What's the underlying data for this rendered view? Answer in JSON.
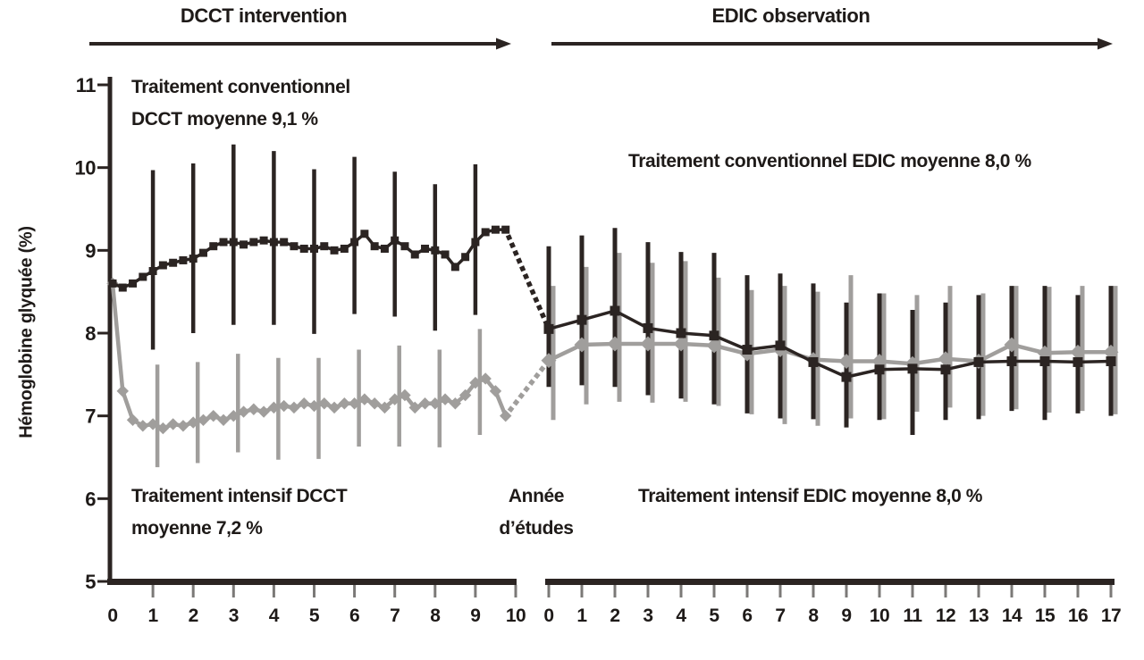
{
  "figure": {
    "y_axis_title": "Hémoglobine glyquée (%)"
  },
  "annotations": {
    "conventional_dcct": {
      "line1": "Traitement conventionnel",
      "line2": "DCCT moyenne 9,1 %"
    },
    "conventional_edic": {
      "line1": "Traitement conventionnel EDIC moyenne 8,0 %"
    },
    "intensive_dcct": {
      "line1": "Traitement intensif DCCT",
      "line2": "moyenne 7,2 %"
    },
    "between_axes": {
      "line1": "Année",
      "line2": "d’études"
    },
    "intensive_edic": {
      "line1": "Traitement intensif EDIC moyenne 8,0 %"
    }
  },
  "chart_data": {
    "type": "line",
    "title": "",
    "ylabel": "Hémoglobine glyquée (%)",
    "ylim": [
      5,
      11
    ],
    "y_ticks": [
      5,
      6,
      7,
      8,
      9,
      10,
      11
    ],
    "grid": false,
    "legend": "in-plot text annotations",
    "colors": {
      "conventional": "#2b2422",
      "intensive": "#a09e9c"
    },
    "panels": [
      {
        "name": "DCCT intervention",
        "x_label": "Année d’études",
        "x_ticks": [
          0,
          1,
          2,
          3,
          4,
          5,
          6,
          7,
          8,
          9,
          10
        ],
        "series": [
          {
            "name": "Traitement conventionnel DCCT",
            "mean_label": "9,1 %",
            "color": "#2b2422",
            "marker": "square",
            "x": [
              0,
              0.25,
              0.5,
              0.75,
              1,
              1.25,
              1.5,
              1.75,
              2,
              2.25,
              2.5,
              2.75,
              3,
              3.25,
              3.5,
              3.75,
              4,
              4.25,
              4.5,
              4.75,
              5,
              5.25,
              5.5,
              5.75,
              6,
              6.25,
              6.5,
              6.75,
              7,
              7.25,
              7.5,
              7.75,
              8,
              8.25,
              8.5,
              8.75,
              9,
              9.25,
              9.5,
              9.75
            ],
            "values": [
              8.6,
              8.55,
              8.6,
              8.68,
              8.75,
              8.82,
              8.85,
              8.88,
              8.9,
              8.97,
              9.05,
              9.1,
              9.1,
              9.07,
              9.1,
              9.12,
              9.1,
              9.1,
              9.05,
              9.02,
              9.02,
              9.05,
              9.0,
              9.02,
              9.1,
              9.2,
              9.05,
              9.02,
              9.12,
              9.05,
              8.95,
              9.02,
              9.0,
              8.95,
              8.8,
              8.92,
              9.1,
              9.22,
              9.25,
              9.25
            ],
            "error_bars": {
              "x": [
                1,
                2,
                3,
                4,
                5,
                6,
                7,
                8,
                9
              ],
              "low": [
                7.8,
                8.0,
                8.1,
                8.1,
                7.99,
                8.23,
                8.2,
                8.03,
                8.22
              ],
              "high": [
                9.97,
                10.05,
                10.28,
                10.2,
                9.98,
                10.13,
                9.95,
                9.8,
                10.04
              ]
            }
          },
          {
            "name": "Traitement intensif DCCT",
            "mean_label": "7,2 %",
            "color": "#a09e9c",
            "marker": "diamond",
            "x": [
              0,
              0.25,
              0.5,
              0.75,
              1,
              1.25,
              1.5,
              1.75,
              2,
              2.25,
              2.5,
              2.75,
              3,
              3.25,
              3.5,
              3.75,
              4,
              4.25,
              4.5,
              4.75,
              5,
              5.25,
              5.5,
              5.75,
              6,
              6.25,
              6.5,
              6.75,
              7,
              7.25,
              7.5,
              7.75,
              8,
              8.25,
              8.5,
              8.75,
              9,
              9.25,
              9.5,
              9.75
            ],
            "values": [
              8.6,
              7.3,
              6.95,
              6.88,
              6.9,
              6.85,
              6.9,
              6.88,
              6.92,
              6.95,
              7.0,
              6.95,
              7.0,
              7.05,
              7.08,
              7.05,
              7.1,
              7.12,
              7.1,
              7.15,
              7.12,
              7.15,
              7.1,
              7.15,
              7.15,
              7.2,
              7.15,
              7.1,
              7.2,
              7.25,
              7.1,
              7.15,
              7.15,
              7.2,
              7.15,
              7.25,
              7.4,
              7.45,
              7.3,
              7.0
            ],
            "error_bars": {
              "x": [
                1,
                2,
                3,
                4,
                5,
                6,
                7,
                8,
                9
              ],
              "low": [
                6.38,
                6.43,
                6.56,
                6.47,
                6.48,
                6.63,
                6.63,
                6.62,
                6.77
              ],
              "high": [
                7.62,
                7.65,
                7.75,
                7.7,
                7.7,
                7.8,
                7.85,
                7.8,
                8.05
              ]
            }
          }
        ]
      },
      {
        "name": "EDIC observation",
        "x_label": "Année d’études",
        "x_ticks": [
          0,
          1,
          2,
          3,
          4,
          5,
          6,
          7,
          8,
          9,
          10,
          11,
          12,
          13,
          14,
          15,
          16,
          17
        ],
        "series": [
          {
            "name": "Traitement conventionnel EDIC",
            "mean_label": "8,0 %",
            "color": "#2b2422",
            "marker": "square",
            "x": [
              0,
              1,
              2,
              3,
              4,
              5,
              6,
              7,
              8,
              9,
              10,
              11,
              12,
              13,
              14,
              15,
              16,
              17
            ],
            "values": [
              8.05,
              8.16,
              8.27,
              8.06,
              8.0,
              7.97,
              7.8,
              7.85,
              7.65,
              7.47,
              7.56,
              7.57,
              7.56,
              7.65,
              7.66,
              7.66,
              7.65,
              7.66
            ],
            "error_bars": {
              "x": [
                0,
                1,
                2,
                3,
                4,
                5,
                6,
                7,
                8,
                9,
                10,
                11,
                12,
                13,
                14,
                15,
                16,
                17
              ],
              "low": [
                7.35,
                7.37,
                7.35,
                7.25,
                7.21,
                7.14,
                7.03,
                6.97,
                6.96,
                6.86,
                6.95,
                6.77,
                6.95,
                6.96,
                7.06,
                6.95,
                7.03,
                7.0
              ],
              "high": [
                9.05,
                9.18,
                9.27,
                9.1,
                8.98,
                8.97,
                8.7,
                8.72,
                8.6,
                8.37,
                8.48,
                8.28,
                8.37,
                8.46,
                8.57,
                8.57,
                8.46,
                8.57
              ]
            }
          },
          {
            "name": "Traitement intensif EDIC",
            "mean_label": "8,0 %",
            "color": "#a09e9c",
            "marker": "diamond",
            "x": [
              0,
              1,
              2,
              3,
              4,
              5,
              6,
              7,
              8,
              9,
              10,
              11,
              12,
              13,
              14,
              15,
              16,
              17
            ],
            "values": [
              7.67,
              7.86,
              7.87,
              7.87,
              7.87,
              7.85,
              7.75,
              7.8,
              7.68,
              7.66,
              7.66,
              7.63,
              7.69,
              7.66,
              7.86,
              7.76,
              7.77,
              7.77
            ],
            "error_bars": {
              "x": [
                0,
                1,
                2,
                3,
                4,
                5,
                6,
                7,
                8,
                9,
                10,
                11,
                12,
                13,
                14,
                15,
                16,
                17
              ],
              "low": [
                6.95,
                7.14,
                7.17,
                7.16,
                7.17,
                7.12,
                7.02,
                6.9,
                6.88,
                6.97,
                6.96,
                7.05,
                7.1,
                7.0,
                7.08,
                7.04,
                7.06,
                7.02
              ],
              "high": [
                8.57,
                8.8,
                8.97,
                8.85,
                8.87,
                8.67,
                8.52,
                8.57,
                8.5,
                8.7,
                8.48,
                8.46,
                8.57,
                8.48,
                8.57,
                8.56,
                8.57,
                8.57
              ]
            }
          }
        ]
      }
    ],
    "transition_style": "dotted connectors between DCCT end and EDIC start for both series"
  }
}
